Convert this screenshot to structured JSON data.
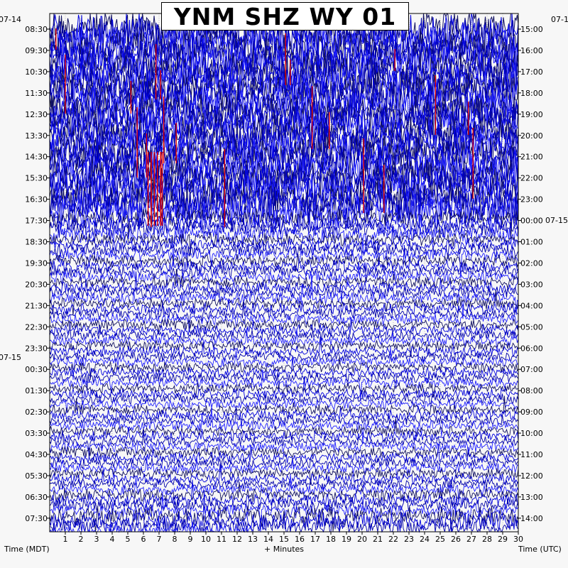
{
  "chart_data": {
    "type": "helicorder",
    "title": "YNM SHZ WY 01",
    "xlabel": "+ Minutes",
    "xlim": [
      0,
      30
    ],
    "x_ticks": [
      1,
      2,
      3,
      4,
      5,
      6,
      7,
      8,
      9,
      10,
      11,
      12,
      13,
      14,
      15,
      16,
      17,
      18,
      19,
      20,
      21,
      22,
      23,
      24,
      25,
      26,
      27,
      28,
      29,
      30
    ],
    "left_axis_label": "Time (MDT)",
    "right_axis_label": "Time (UTC)",
    "left_dates": [
      "07-14",
      "07-15"
    ],
    "right_dates": [
      "07-1",
      "07-15"
    ],
    "left_ticks": [
      "08:30",
      "09:30",
      "10:30",
      "11:30",
      "12:30",
      "13:30",
      "14:30",
      "15:30",
      "16:30",
      "17:30",
      "18:30",
      "19:30",
      "20:30",
      "21:30",
      "22:30",
      "23:30",
      "00:30",
      "01:30",
      "02:30",
      "03:30",
      "04:30",
      "05:30",
      "06:30",
      "07:30"
    ],
    "right_ticks": [
      "15:00",
      "16:00",
      "17:00",
      "18:00",
      "19:00",
      "20:00",
      "21:00",
      "22:00",
      "23:00",
      "00:00",
      "01:00",
      "02:00",
      "03:00",
      "04:00",
      "05:00",
      "06:00",
      "07:00",
      "08:00",
      "09:00",
      "10:00",
      "11:00",
      "12:00",
      "13:00",
      "14:00"
    ],
    "traces_per_hour": 4,
    "trace_colors": [
      "#101060",
      "#0000dd",
      "#0000aa",
      "#2222ff"
    ],
    "clip_color": "#dd0000",
    "trace_amplitude_by_hour": [
      1.0,
      1.0,
      1.0,
      1.0,
      0.95,
      0.95,
      0.95,
      0.95,
      0.9,
      0.35,
      0.18,
      0.16,
      0.14,
      0.12,
      0.1,
      0.09,
      0.09,
      0.09,
      0.09,
      0.09,
      0.1,
      0.1,
      0.18,
      0.35
    ]
  }
}
